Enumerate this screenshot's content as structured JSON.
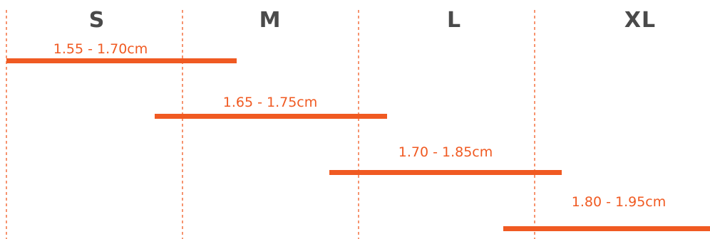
{
  "size_chart": {
    "colors": {
      "accent": "#f05a22",
      "header": "#4a4a4a",
      "background": "#ffffff"
    },
    "sizes": [
      "S",
      "M",
      "L",
      "XL"
    ],
    "ranges": [
      {
        "size": "S",
        "label": "1.55 - 1.70cm",
        "from": 1.55,
        "to": 1.7
      },
      {
        "size": "M",
        "label": "1.65 - 1.75cm",
        "from": 1.65,
        "to": 1.75
      },
      {
        "size": "L",
        "label": "1.70 - 1.85cm",
        "from": 1.7,
        "to": 1.85
      },
      {
        "size": "XL",
        "label": "1.80 - 1.95cm",
        "from": 1.8,
        "to": 1.95
      }
    ]
  }
}
